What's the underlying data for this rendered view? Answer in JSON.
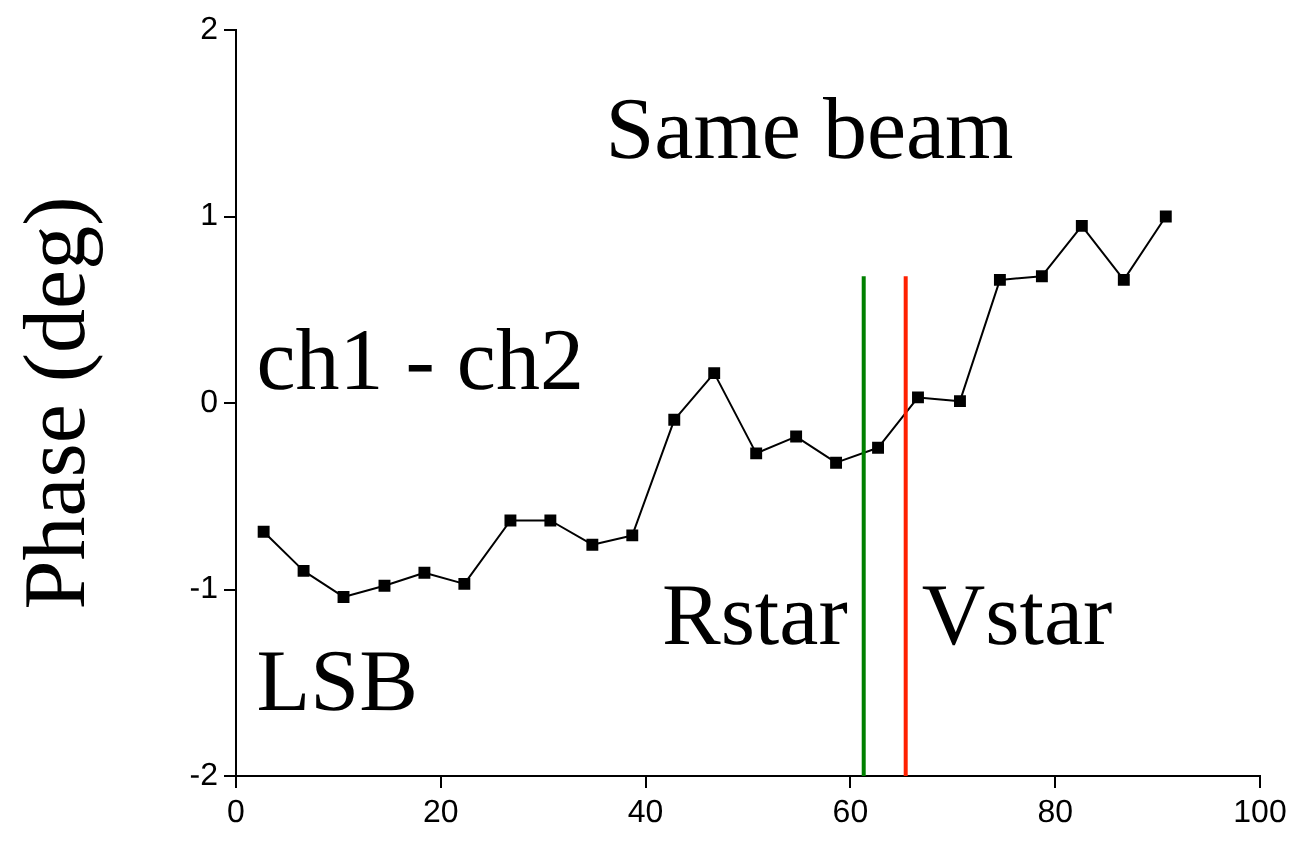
{
  "chart_data": {
    "type": "line",
    "ylabel": "Phase (deg)",
    "x": [
      2.7,
      6.6,
      10.5,
      14.5,
      18.4,
      22.3,
      26.8,
      30.7,
      34.8,
      38.7,
      42.8,
      46.7,
      50.8,
      54.7,
      58.6,
      62.7,
      66.6,
      70.7,
      74.6,
      78.7,
      82.6,
      86.7,
      90.8
    ],
    "series": [
      {
        "color": "#000000",
        "values": [
          -0.69,
          -0.9,
          -1.04,
          -0.98,
          -0.91,
          -0.97,
          -0.63,
          -0.63,
          -0.76,
          -0.71,
          -0.09,
          0.16,
          -0.27,
          -0.18,
          -0.32,
          -0.24,
          0.03,
          0.01,
          0.66,
          0.68,
          0.95,
          0.66,
          1.0
        ]
      }
    ],
    "xlim": [
      0,
      100
    ],
    "xticks": [
      0,
      20,
      40,
      60,
      80,
      100
    ],
    "ylim": [
      -2,
      2
    ],
    "yticks": [
      -2,
      -1,
      0,
      1,
      2
    ],
    "marker": "square",
    "line_style": "solid",
    "grid": false,
    "legend": false,
    "ref_lines": [
      {
        "axis": "x",
        "value": 61.3,
        "label": "Rstar",
        "color": "#008000"
      },
      {
        "axis": "x",
        "value": 65.4,
        "label": "Vstar",
        "color": "#ff2000"
      }
    ],
    "annotations": [
      "Same beam",
      "ch1 - ch2",
      "LSB"
    ]
  }
}
